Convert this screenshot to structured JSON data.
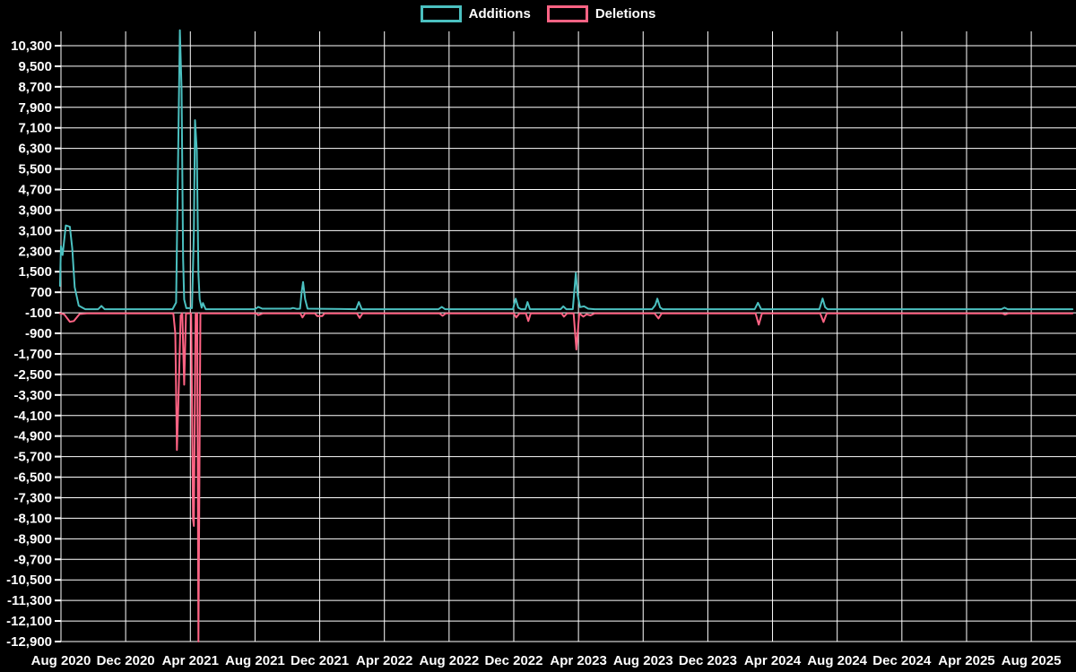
{
  "chart_data": {
    "type": "line",
    "title": "",
    "legend_position": "top-center",
    "background_color": "#000000",
    "grid_color": "#ffffff",
    "text_color": "#ffffff",
    "grid": true,
    "legend": [
      {
        "label": "Additions",
        "color": "#4bc0c0"
      },
      {
        "label": "Deletions",
        "color": "#ff6384"
      }
    ],
    "x_axis": {
      "unit": "months since Aug 2020",
      "tick_interval_months": 4,
      "tick_labels": [
        "Aug 2020",
        "Dec 2020",
        "Apr 2021",
        "Aug 2021",
        "Dec 2021",
        "Apr 2022",
        "Aug 2022",
        "Dec 2022",
        "Apr 2023",
        "Aug 2023",
        "Dec 2023",
        "Apr 2024",
        "Aug 2024",
        "Dec 2024",
        "Apr 2025",
        "Aug 2025"
      ]
    },
    "y_axis": {
      "min": -12900,
      "max": 10300,
      "step": 800,
      "tick_labels": [
        "10,300",
        "9,500",
        "8,700",
        "7,900",
        "7,100",
        "6,300",
        "5,500",
        "4,700",
        "3,900",
        "3,100",
        "2,300",
        "1,500",
        "700",
        "-100",
        "-900",
        "-1,700",
        "-2,500",
        "-3,300",
        "-4,100",
        "-4,900",
        "-5,700",
        "-6,500",
        "-7,300",
        "-8,100",
        "-8,900",
        "-9,700",
        "-10,500",
        "-11,300",
        "-12,100",
        "-12,900"
      ]
    },
    "series": [
      {
        "name": "Additions",
        "color": "#4bc0c0",
        "points": [
          [
            -0.06,
            950
          ],
          [
            0.0,
            2500
          ],
          [
            0.1,
            2150
          ],
          [
            0.3,
            3300
          ],
          [
            0.55,
            3250
          ],
          [
            0.7,
            2400
          ],
          [
            0.85,
            900
          ],
          [
            1.1,
            180
          ],
          [
            1.5,
            40
          ],
          [
            2.3,
            40
          ],
          [
            2.5,
            170
          ],
          [
            2.7,
            40
          ],
          [
            6.9,
            40
          ],
          [
            7.12,
            300
          ],
          [
            7.35,
            10900
          ],
          [
            7.46,
            8600
          ],
          [
            7.55,
            2000
          ],
          [
            7.62,
            420
          ],
          [
            7.75,
            80
          ],
          [
            8.1,
            80
          ],
          [
            8.22,
            3000
          ],
          [
            8.29,
            7400
          ],
          [
            8.4,
            6200
          ],
          [
            8.5,
            1400
          ],
          [
            8.58,
            420
          ],
          [
            8.7,
            100
          ],
          [
            8.78,
            280
          ],
          [
            8.95,
            40
          ],
          [
            12.0,
            40
          ],
          [
            12.2,
            130
          ],
          [
            12.45,
            60
          ],
          [
            14.2,
            60
          ],
          [
            14.35,
            90
          ],
          [
            14.6,
            50
          ],
          [
            14.78,
            60
          ],
          [
            14.88,
            700
          ],
          [
            14.97,
            1100
          ],
          [
            15.1,
            430
          ],
          [
            15.25,
            60
          ],
          [
            18.25,
            40
          ],
          [
            18.42,
            320
          ],
          [
            18.6,
            40
          ],
          [
            23.35,
            40
          ],
          [
            23.55,
            130
          ],
          [
            23.75,
            40
          ],
          [
            27.95,
            40
          ],
          [
            28.12,
            450
          ],
          [
            28.28,
            100
          ],
          [
            28.45,
            40
          ],
          [
            28.72,
            40
          ],
          [
            28.85,
            320
          ],
          [
            29.0,
            40
          ],
          [
            30.9,
            40
          ],
          [
            31.06,
            150
          ],
          [
            31.25,
            40
          ],
          [
            31.65,
            40
          ],
          [
            31.84,
            1450
          ],
          [
            31.95,
            600
          ],
          [
            32.1,
            120
          ],
          [
            32.35,
            150
          ],
          [
            32.6,
            60
          ],
          [
            33.0,
            40
          ],
          [
            36.55,
            40
          ],
          [
            36.75,
            200
          ],
          [
            36.88,
            450
          ],
          [
            37.05,
            110
          ],
          [
            37.2,
            40
          ],
          [
            42.9,
            40
          ],
          [
            43.1,
            290
          ],
          [
            43.3,
            40
          ],
          [
            46.9,
            40
          ],
          [
            47.1,
            460
          ],
          [
            47.25,
            120
          ],
          [
            47.4,
            40
          ],
          [
            58.15,
            40
          ],
          [
            58.35,
            100
          ],
          [
            58.55,
            40
          ],
          [
            62.55,
            40
          ]
        ]
      },
      {
        "name": "Deletions",
        "color": "#ff6384",
        "points": [
          [
            -0.06,
            -120
          ],
          [
            0.2,
            -160
          ],
          [
            0.55,
            -450
          ],
          [
            0.8,
            -420
          ],
          [
            1.15,
            -150
          ],
          [
            1.6,
            -120
          ],
          [
            6.95,
            -120
          ],
          [
            7.07,
            -900
          ],
          [
            7.17,
            -5440
          ],
          [
            7.26,
            -3600
          ],
          [
            7.4,
            -200
          ],
          [
            7.5,
            -120
          ],
          [
            7.62,
            -2900
          ],
          [
            7.73,
            -120
          ],
          [
            8.05,
            -120
          ],
          [
            8.17,
            -8150
          ],
          [
            8.22,
            -8400
          ],
          [
            8.33,
            -120
          ],
          [
            8.42,
            -120
          ],
          [
            8.5,
            -12900
          ],
          [
            8.62,
            -120
          ],
          [
            12.05,
            -120
          ],
          [
            12.2,
            -190
          ],
          [
            12.5,
            -120
          ],
          [
            14.8,
            -120
          ],
          [
            14.93,
            -280
          ],
          [
            15.1,
            -120
          ],
          [
            15.7,
            -120
          ],
          [
            15.85,
            -230
          ],
          [
            16.15,
            -230
          ],
          [
            16.3,
            -120
          ],
          [
            18.3,
            -120
          ],
          [
            18.47,
            -300
          ],
          [
            18.65,
            -120
          ],
          [
            23.4,
            -120
          ],
          [
            23.6,
            -220
          ],
          [
            23.8,
            -120
          ],
          [
            28.0,
            -120
          ],
          [
            28.15,
            -280
          ],
          [
            28.35,
            -120
          ],
          [
            28.75,
            -120
          ],
          [
            28.9,
            -420
          ],
          [
            29.05,
            -120
          ],
          [
            30.95,
            -120
          ],
          [
            31.1,
            -250
          ],
          [
            31.3,
            -120
          ],
          [
            31.7,
            -120
          ],
          [
            31.87,
            -1530
          ],
          [
            32.05,
            -120
          ],
          [
            32.3,
            -250
          ],
          [
            32.5,
            -160
          ],
          [
            32.75,
            -200
          ],
          [
            33.0,
            -120
          ],
          [
            36.7,
            -120
          ],
          [
            36.95,
            -320
          ],
          [
            37.15,
            -120
          ],
          [
            42.95,
            -120
          ],
          [
            43.15,
            -560
          ],
          [
            43.35,
            -120
          ],
          [
            46.95,
            -120
          ],
          [
            47.15,
            -460
          ],
          [
            47.35,
            -120
          ],
          [
            58.2,
            -120
          ],
          [
            58.38,
            -170
          ],
          [
            58.6,
            -120
          ],
          [
            62.55,
            -120
          ]
        ]
      }
    ]
  }
}
